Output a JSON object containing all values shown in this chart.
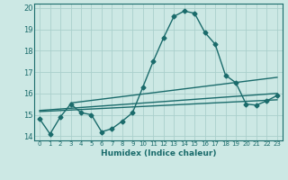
{
  "xlabel": "Humidex (Indice chaleur)",
  "ylabel": "",
  "xlim": [
    -0.5,
    23.5
  ],
  "ylim": [
    13.8,
    20.2
  ],
  "yticks": [
    14,
    15,
    16,
    17,
    18,
    19,
    20
  ],
  "xticks": [
    0,
    1,
    2,
    3,
    4,
    5,
    6,
    7,
    8,
    9,
    10,
    11,
    12,
    13,
    14,
    15,
    16,
    17,
    18,
    19,
    20,
    21,
    22,
    23
  ],
  "background_color": "#cce8e4",
  "grid_color": "#aacfcc",
  "line_color": "#1a6b6b",
  "lines_main": {
    "x": [
      0,
      1,
      2,
      3,
      4,
      5,
      6,
      7,
      8,
      9,
      10,
      11,
      12,
      13,
      14,
      15,
      16,
      17,
      18,
      19,
      20,
      21,
      22,
      23
    ],
    "y": [
      14.8,
      14.1,
      14.9,
      15.5,
      15.1,
      15.0,
      14.2,
      14.35,
      14.7,
      15.1,
      16.3,
      17.5,
      18.6,
      19.6,
      19.85,
      19.75,
      18.85,
      18.3,
      16.85,
      16.5,
      15.5,
      15.45,
      15.65,
      15.9
    ]
  },
  "trend_lines": [
    {
      "x": [
        0,
        23
      ],
      "y": [
        15.15,
        15.7
      ]
    },
    {
      "x": [
        0,
        23
      ],
      "y": [
        15.2,
        16.0
      ]
    },
    {
      "x": [
        3,
        23
      ],
      "y": [
        15.55,
        16.75
      ]
    }
  ],
  "marker": "D",
  "markersize": 2.5,
  "linewidth": 1.0
}
